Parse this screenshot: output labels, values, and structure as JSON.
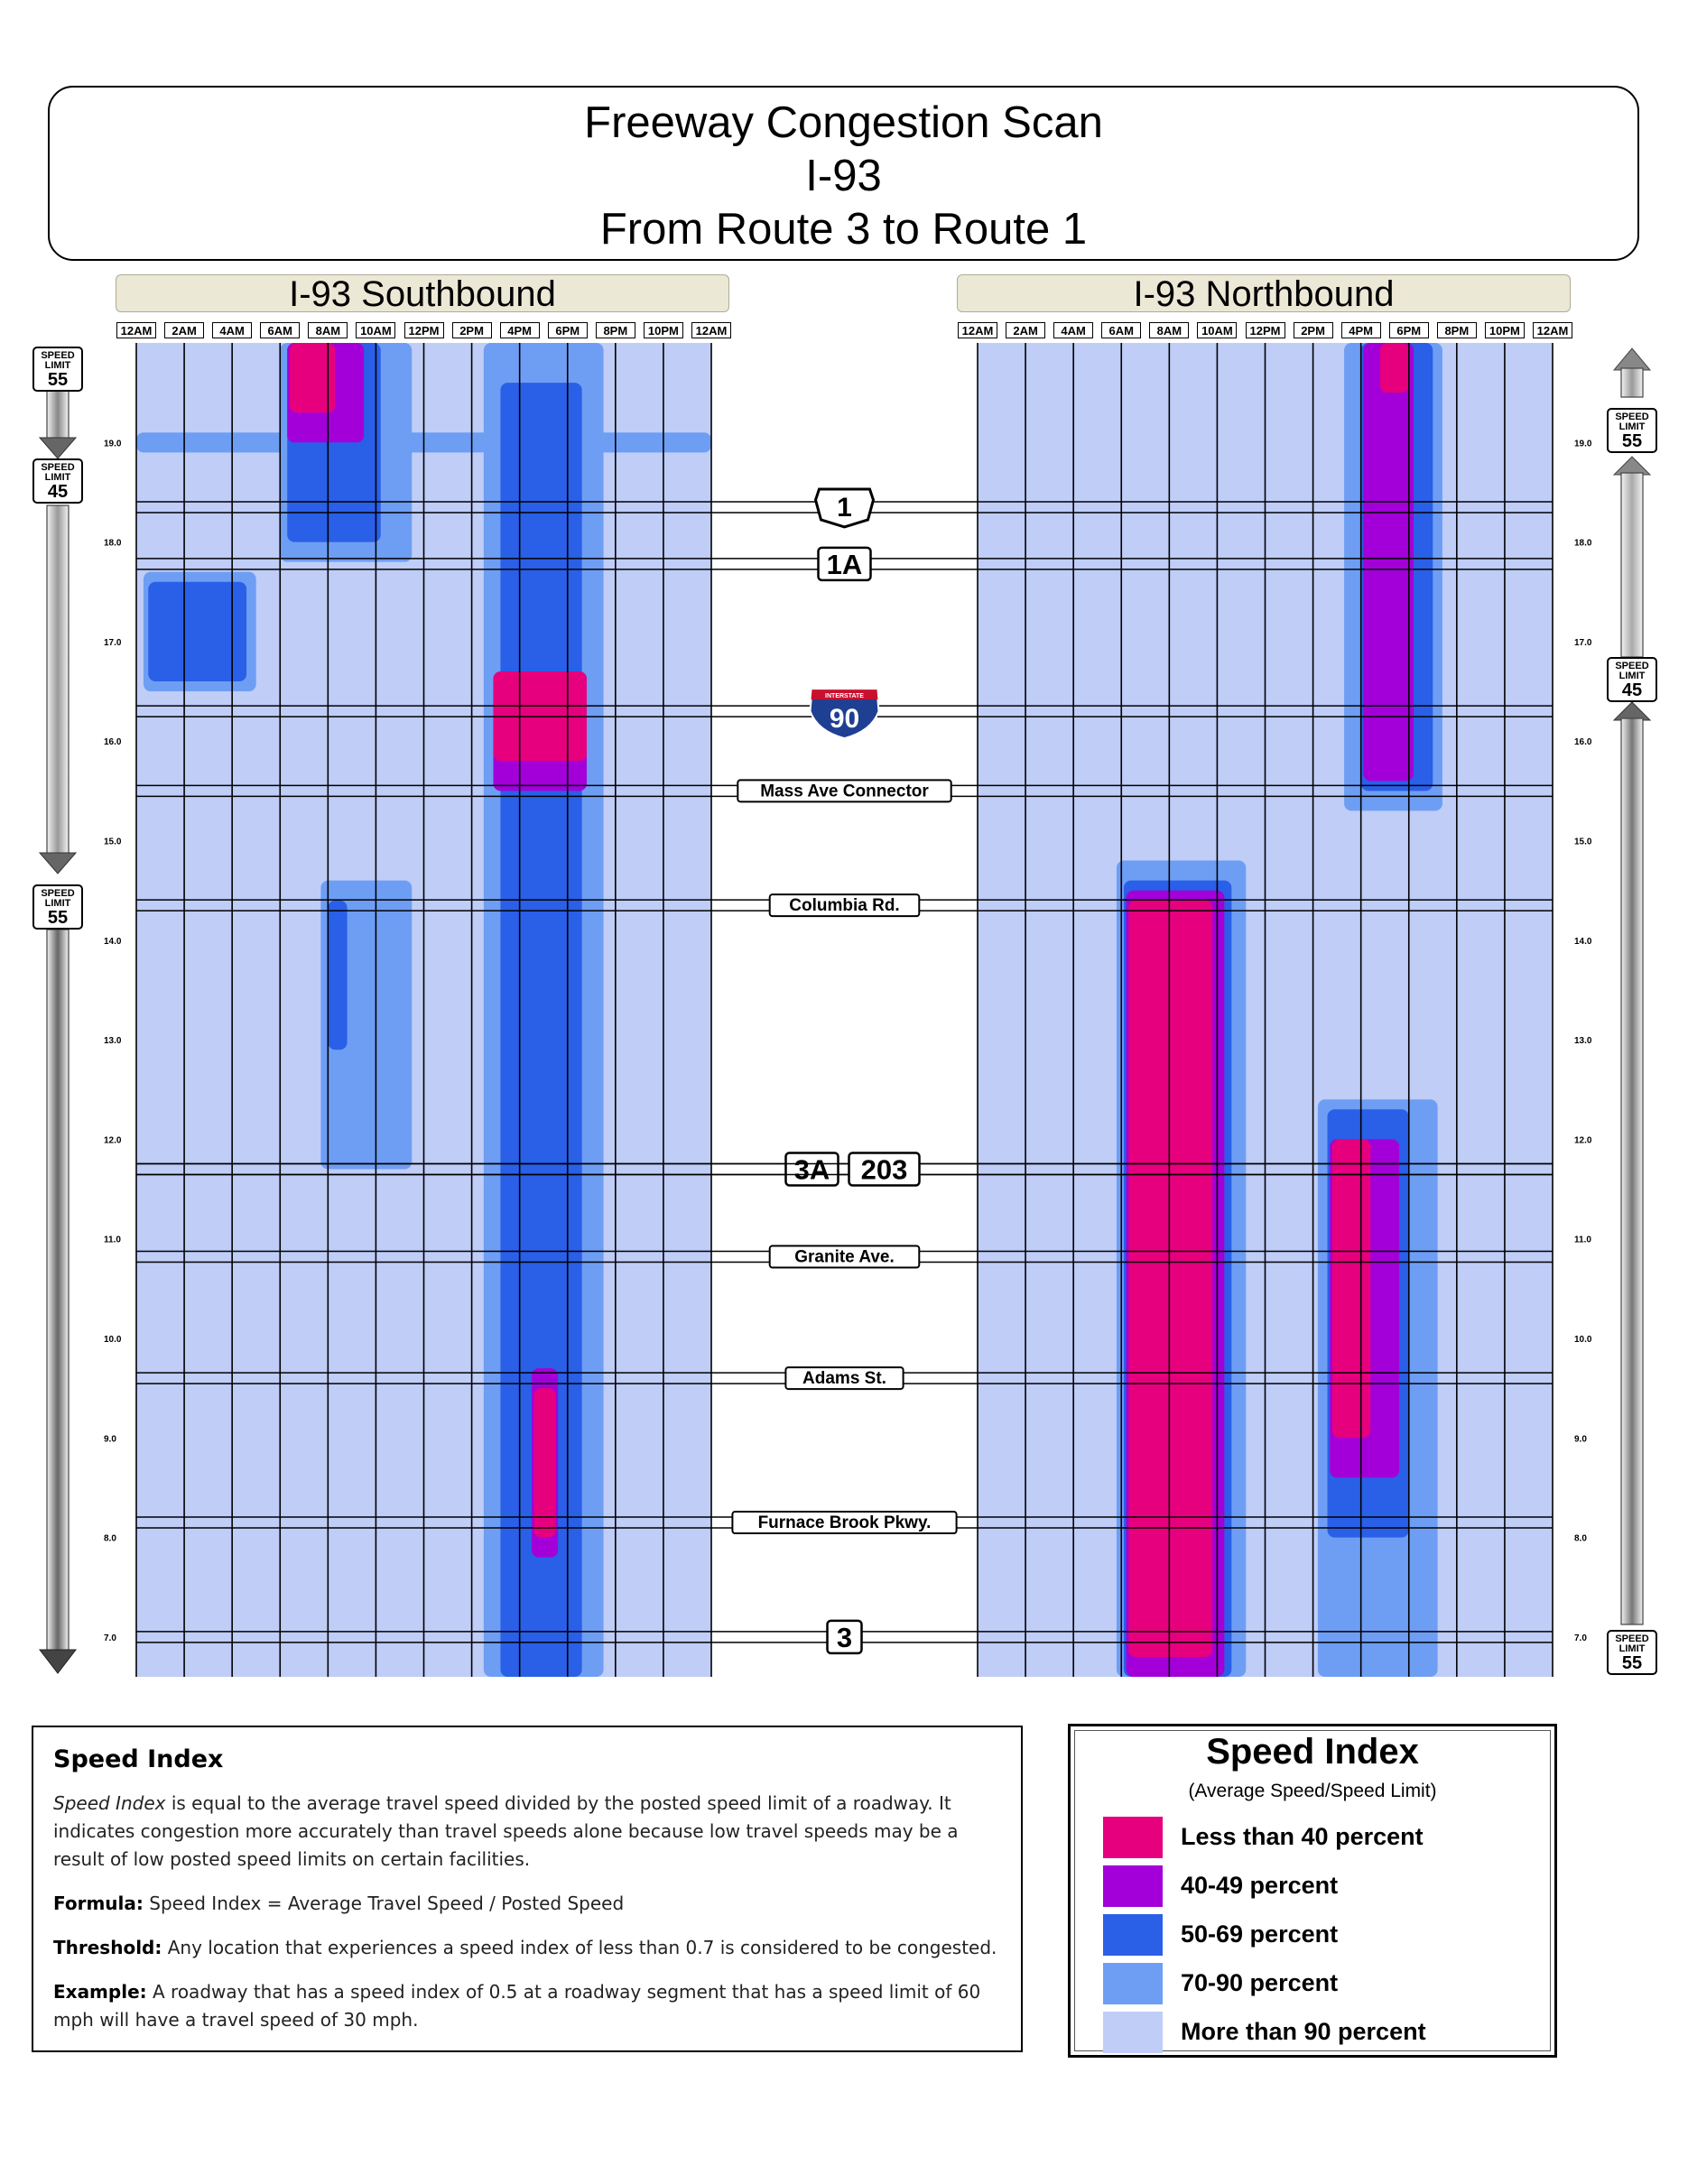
{
  "title": {
    "line1": "Freeway Congestion Scan",
    "line2": "I-93",
    "line3": "From Route 3 to Route 1"
  },
  "panels": {
    "southbound": "I-93 Southbound",
    "northbound": "I-93 Northbound"
  },
  "time_labels": [
    "12AM",
    "2AM",
    "4AM",
    "6AM",
    "8AM",
    "10AM",
    "12PM",
    "2PM",
    "4PM",
    "6PM",
    "8PM",
    "10PM",
    "12AM"
  ],
  "mile_ticks": [
    "19.0",
    "18.0",
    "17.0",
    "16.0",
    "15.0",
    "14.0",
    "13.0",
    "12.0",
    "11.0",
    "10.0",
    "9.0",
    "8.0",
    "7.0"
  ],
  "interchanges": [
    {
      "label": "1",
      "mile": 18.35,
      "style": "us"
    },
    {
      "label": "1A",
      "mile": 17.78,
      "style": "box"
    },
    {
      "label": "90",
      "mile": 16.3,
      "style": "interstate",
      "sub": "INTERSTATE"
    },
    {
      "label": "Mass Ave Connector",
      "mile": 15.5,
      "style": "tag"
    },
    {
      "label": "Columbia Rd.",
      "mile": 14.35,
      "style": "tag"
    },
    {
      "label": "3A",
      "mile": 11.7,
      "style": "box"
    },
    {
      "label": "203",
      "mile": 11.7,
      "style": "box"
    },
    {
      "label": "Granite Ave.",
      "mile": 10.82,
      "style": "tag"
    },
    {
      "label": "Adams St.",
      "mile": 9.6,
      "style": "tag"
    },
    {
      "label": "Furnace Brook Pkwy.",
      "mile": 8.15,
      "style": "tag"
    },
    {
      "label": "3",
      "mile": 7.0,
      "style": "box"
    }
  ],
  "speed_signs": {
    "southbound": [
      {
        "top": "SPEED",
        "mid": "LIMIT",
        "value": "55"
      },
      {
        "top": "SPEED",
        "mid": "LIMIT",
        "value": "45"
      },
      {
        "top": "SPEED",
        "mid": "LIMIT",
        "value": "55"
      }
    ],
    "northbound": [
      {
        "top": "SPEED",
        "mid": "LIMIT",
        "value": "55"
      },
      {
        "top": "SPEED",
        "mid": "LIMIT",
        "value": "45"
      },
      {
        "top": "SPEED",
        "mid": "LIMIT",
        "value": "55"
      }
    ]
  },
  "info": {
    "heading": "Speed Index",
    "p1_term": "Speed Index",
    "p1_rest": " is equal to the average travel speed divided by the posted speed limit of a roadway. It indicates congestion more accurately than travel speeds alone because low travel speeds may be a result of low posted speed limits on certain facilities.",
    "formula_label": "Formula:",
    "formula": " Speed Index = Average Travel Speed / Posted Speed",
    "threshold_label": "Threshold:",
    "threshold": " Any location that experiences a speed index of less than 0.7 is considered to be congested.",
    "example_label": "Example:",
    "example": " A roadway that has a speed index of 0.5 at a roadway segment that has a speed limit of 60 mph will have a travel speed of 30 mph."
  },
  "key": {
    "title": "Speed Index",
    "subtitle": "(Average Speed/Speed Limit)",
    "items": [
      {
        "label": "Less than 40 percent",
        "color": "#e6007e"
      },
      {
        "label": "40-49 percent",
        "color": "#a300d9"
      },
      {
        "label": "50-69 percent",
        "color": "#2a5fe8"
      },
      {
        "label": "70-90 percent",
        "color": "#6e9ef4"
      },
      {
        "label": "More than 90 percent",
        "color": "#bfcdf7"
      }
    ]
  },
  "chart_data": {
    "type": "heatmap",
    "x_label_ticks": [
      "12AM",
      "2AM",
      "4AM",
      "6AM",
      "8AM",
      "10AM",
      "12PM",
      "2PM",
      "4PM",
      "6PM",
      "8PM",
      "10PM",
      "12AM"
    ],
    "x_range_hours": [
      0,
      24
    ],
    "y_range_mile": [
      6.6,
      20.0
    ],
    "categories": [
      "More than 90 percent",
      "70-90 percent",
      "50-69 percent",
      "40-49 percent",
      "Less than 40 percent"
    ],
    "series": [
      {
        "name": "I-93 Southbound",
        "regions": [
          {
            "level": "70-90 percent",
            "hours": [
              0,
              24
            ],
            "miles": [
              18.9,
              19.1
            ]
          },
          {
            "level": "70-90 percent",
            "hours": [
              6,
              11.5
            ],
            "miles": [
              17.8,
              20.0
            ]
          },
          {
            "level": "50-69 percent",
            "hours": [
              6.3,
              10.2
            ],
            "miles": [
              18.0,
              20.0
            ]
          },
          {
            "level": "40-49 percent",
            "hours": [
              6.3,
              9.5
            ],
            "miles": [
              19.0,
              20.0
            ]
          },
          {
            "level": "Less than 40 percent",
            "hours": [
              6.4,
              8.3
            ],
            "miles": [
              19.3,
              20.0
            ]
          },
          {
            "level": "70-90 percent",
            "hours": [
              14.5,
              19.5
            ],
            "miles": [
              6.6,
              20.0
            ]
          },
          {
            "level": "50-69 percent",
            "hours": [
              15.2,
              18.6
            ],
            "miles": [
              6.6,
              19.6
            ]
          },
          {
            "level": "40-49 percent",
            "hours": [
              14.9,
              18.8
            ],
            "miles": [
              15.5,
              16.7
            ]
          },
          {
            "level": "Less than 40 percent",
            "hours": [
              14.9,
              18.8
            ],
            "miles": [
              15.8,
              16.7
            ]
          },
          {
            "level": "40-49 percent",
            "hours": [
              16.5,
              17.6
            ],
            "miles": [
              7.8,
              9.7
            ]
          },
          {
            "level": "Less than 40 percent",
            "hours": [
              16.6,
              17.5
            ],
            "miles": [
              8.0,
              9.5
            ]
          },
          {
            "level": "70-90 percent",
            "hours": [
              0.3,
              5.0
            ],
            "miles": [
              16.5,
              17.7
            ]
          },
          {
            "level": "50-69 percent",
            "hours": [
              0.5,
              4.6
            ],
            "miles": [
              16.6,
              17.6
            ]
          },
          {
            "level": "70-90 percent",
            "hours": [
              7.7,
              11.5
            ],
            "miles": [
              11.7,
              14.6
            ]
          },
          {
            "level": "50-69 percent",
            "hours": [
              8.0,
              8.8
            ],
            "miles": [
              12.9,
              14.4
            ]
          }
        ]
      },
      {
        "name": "I-93 Northbound",
        "regions": [
          {
            "level": "70-90 percent",
            "hours": [
              15.3,
              19.4
            ],
            "miles": [
              15.3,
              20.0
            ]
          },
          {
            "level": "50-69 percent",
            "hours": [
              16.0,
              19.0
            ],
            "miles": [
              15.5,
              20.0
            ]
          },
          {
            "level": "40-49 percent",
            "hours": [
              16.1,
              18.2
            ],
            "miles": [
              15.6,
              20.0
            ]
          },
          {
            "level": "Less than 40 percent",
            "hours": [
              16.8,
              18.0
            ],
            "miles": [
              19.5,
              20.0
            ]
          },
          {
            "level": "70-90 percent",
            "hours": [
              5.8,
              11.2
            ],
            "miles": [
              6.6,
              14.8
            ]
          },
          {
            "level": "50-69 percent",
            "hours": [
              6.1,
              10.6
            ],
            "miles": [
              6.6,
              14.6
            ]
          },
          {
            "level": "40-49 percent",
            "hours": [
              6.2,
              10.3
            ],
            "miles": [
              6.6,
              14.5
            ]
          },
          {
            "level": "Less than 40 percent",
            "hours": [
              6.3,
              9.8
            ],
            "miles": [
              6.8,
              14.4
            ]
          },
          {
            "level": "70-90 percent",
            "hours": [
              14.2,
              19.2
            ],
            "miles": [
              6.6,
              12.4
            ]
          },
          {
            "level": "50-69 percent",
            "hours": [
              14.6,
              18.0
            ],
            "miles": [
              8.0,
              12.3
            ]
          },
          {
            "level": "40-49 percent",
            "hours": [
              14.7,
              17.6
            ],
            "miles": [
              8.6,
              12.0
            ]
          },
          {
            "level": "Less than 40 percent",
            "hours": [
              14.8,
              16.4
            ],
            "miles": [
              9.0,
              12.0
            ]
          }
        ]
      }
    ]
  }
}
